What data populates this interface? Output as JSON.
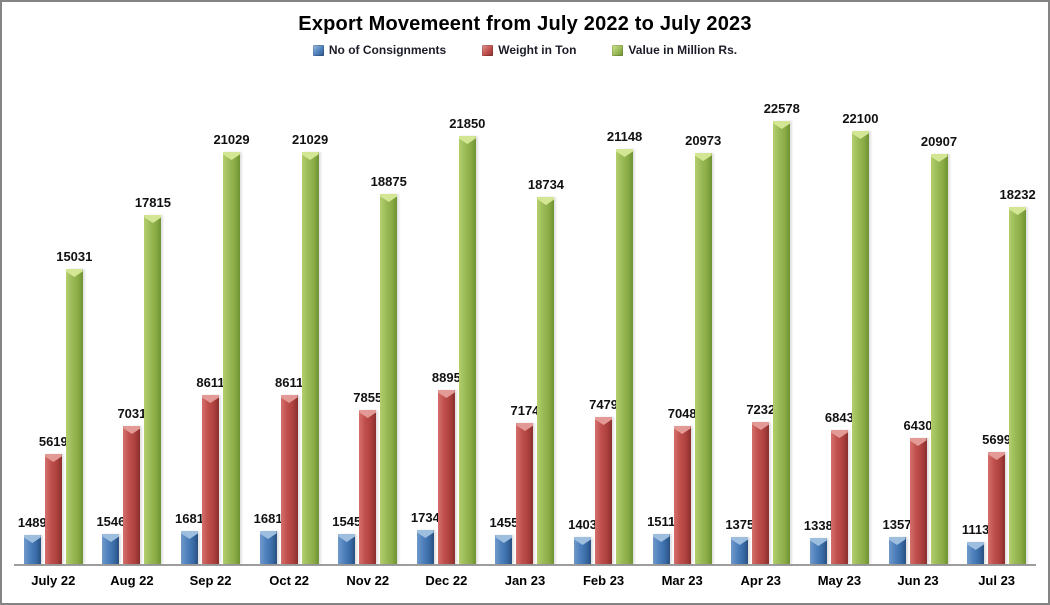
{
  "title": "Export Movemeent from July 2022 to July 2023",
  "legend": [
    {
      "label": "No of Consignments",
      "color": "#4f81bd"
    },
    {
      "label": "Weight in Ton",
      "color": "#c0504d"
    },
    {
      "label": "Value in Million Rs.",
      "color": "#9bbb59"
    }
  ],
  "colors": {
    "blue": "#4f81bd",
    "red": "#c0504d",
    "green": "#9bbb59",
    "axis_line": "#9d9d9d",
    "frame_border": "#848484",
    "background": "#ffffff",
    "text": "#000000"
  },
  "chart_data": {
    "type": "bar",
    "title": "Export Movemeent from July 2022 to July 2023",
    "xlabel": "",
    "ylabel": "",
    "ylim": [
      0,
      25000
    ],
    "grid": false,
    "legend_position": "top",
    "data_labels": true,
    "categories": [
      "July 22",
      "Aug 22",
      "Sep 22",
      "Oct 22",
      "Nov 22",
      "Dec 22",
      "Jan 23",
      "Feb 23",
      "Mar 23",
      "Apr 23",
      "May 23",
      "Jun 23",
      "Jul 23"
    ],
    "series": [
      {
        "name": "No of Consignments",
        "color": "#4f81bd",
        "values": [
          1489,
          1546,
          1681,
          1681,
          1545,
          1734,
          1455,
          1403,
          1511,
          1375,
          1338,
          1357,
          1113
        ]
      },
      {
        "name": "Weight in Ton",
        "color": "#c0504d",
        "values": [
          5619,
          7031,
          8611,
          8611,
          7855,
          8895,
          7174,
          7479,
          7048,
          7232,
          6843,
          6430,
          5699
        ]
      },
      {
        "name": "Value in Million Rs.",
        "color": "#9bbb59",
        "values": [
          15031,
          17815,
          21029,
          21029,
          18875,
          21850,
          18734,
          21148,
          20973,
          22578,
          22100,
          20907,
          18232
        ]
      }
    ]
  }
}
